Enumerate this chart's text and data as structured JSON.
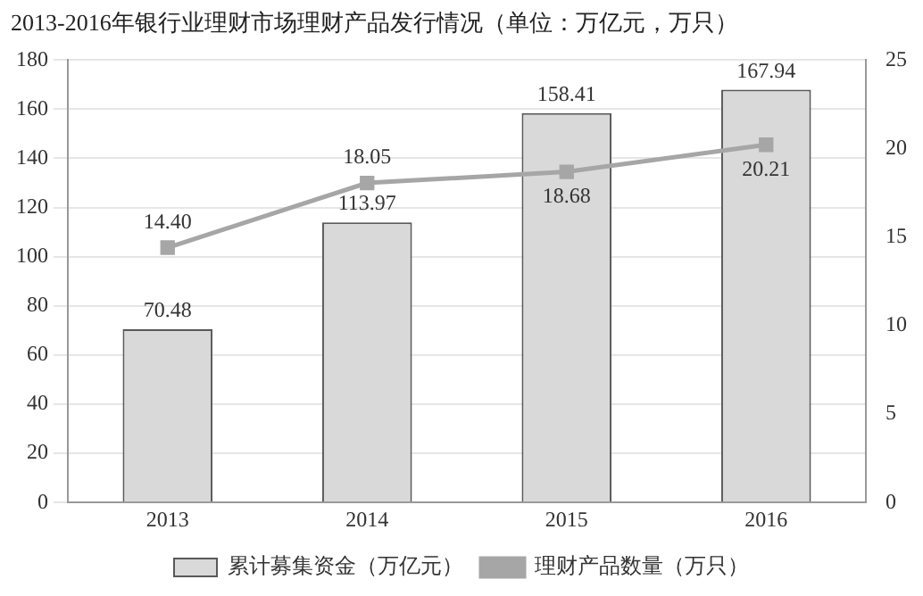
{
  "chart_data": {
    "type": "bar",
    "title": "2013-2016年银行业理财市场理财产品发行情况（单位：万亿元，万只）",
    "categories": [
      "2013",
      "2014",
      "2015",
      "2016"
    ],
    "series": [
      {
        "name": "累计募集资金（万亿元）",
        "color": "#d9d9d9",
        "values": [
          70.48,
          113.97,
          158.41,
          167.94
        ],
        "value_labels": [
          "70.48",
          "113.97",
          "158.41",
          "167.94"
        ]
      },
      {
        "name": "理财产品数量（万只）",
        "type": "line",
        "axis": "y2",
        "color": "#a6a6a6",
        "values": [
          14.4,
          18.05,
          18.68,
          20.21
        ],
        "value_labels": [
          "14.40",
          "18.05",
          "18.68",
          "20.21"
        ]
      }
    ],
    "ylim": [
      0,
      180
    ],
    "yticks": [
      0,
      20,
      40,
      60,
      80,
      100,
      120,
      140,
      160,
      180
    ],
    "y2lim": [
      0,
      25
    ],
    "y2ticks": [
      0,
      5,
      10,
      15,
      20,
      25
    ],
    "marker": "square",
    "legend": "bottom",
    "grid": "y"
  }
}
